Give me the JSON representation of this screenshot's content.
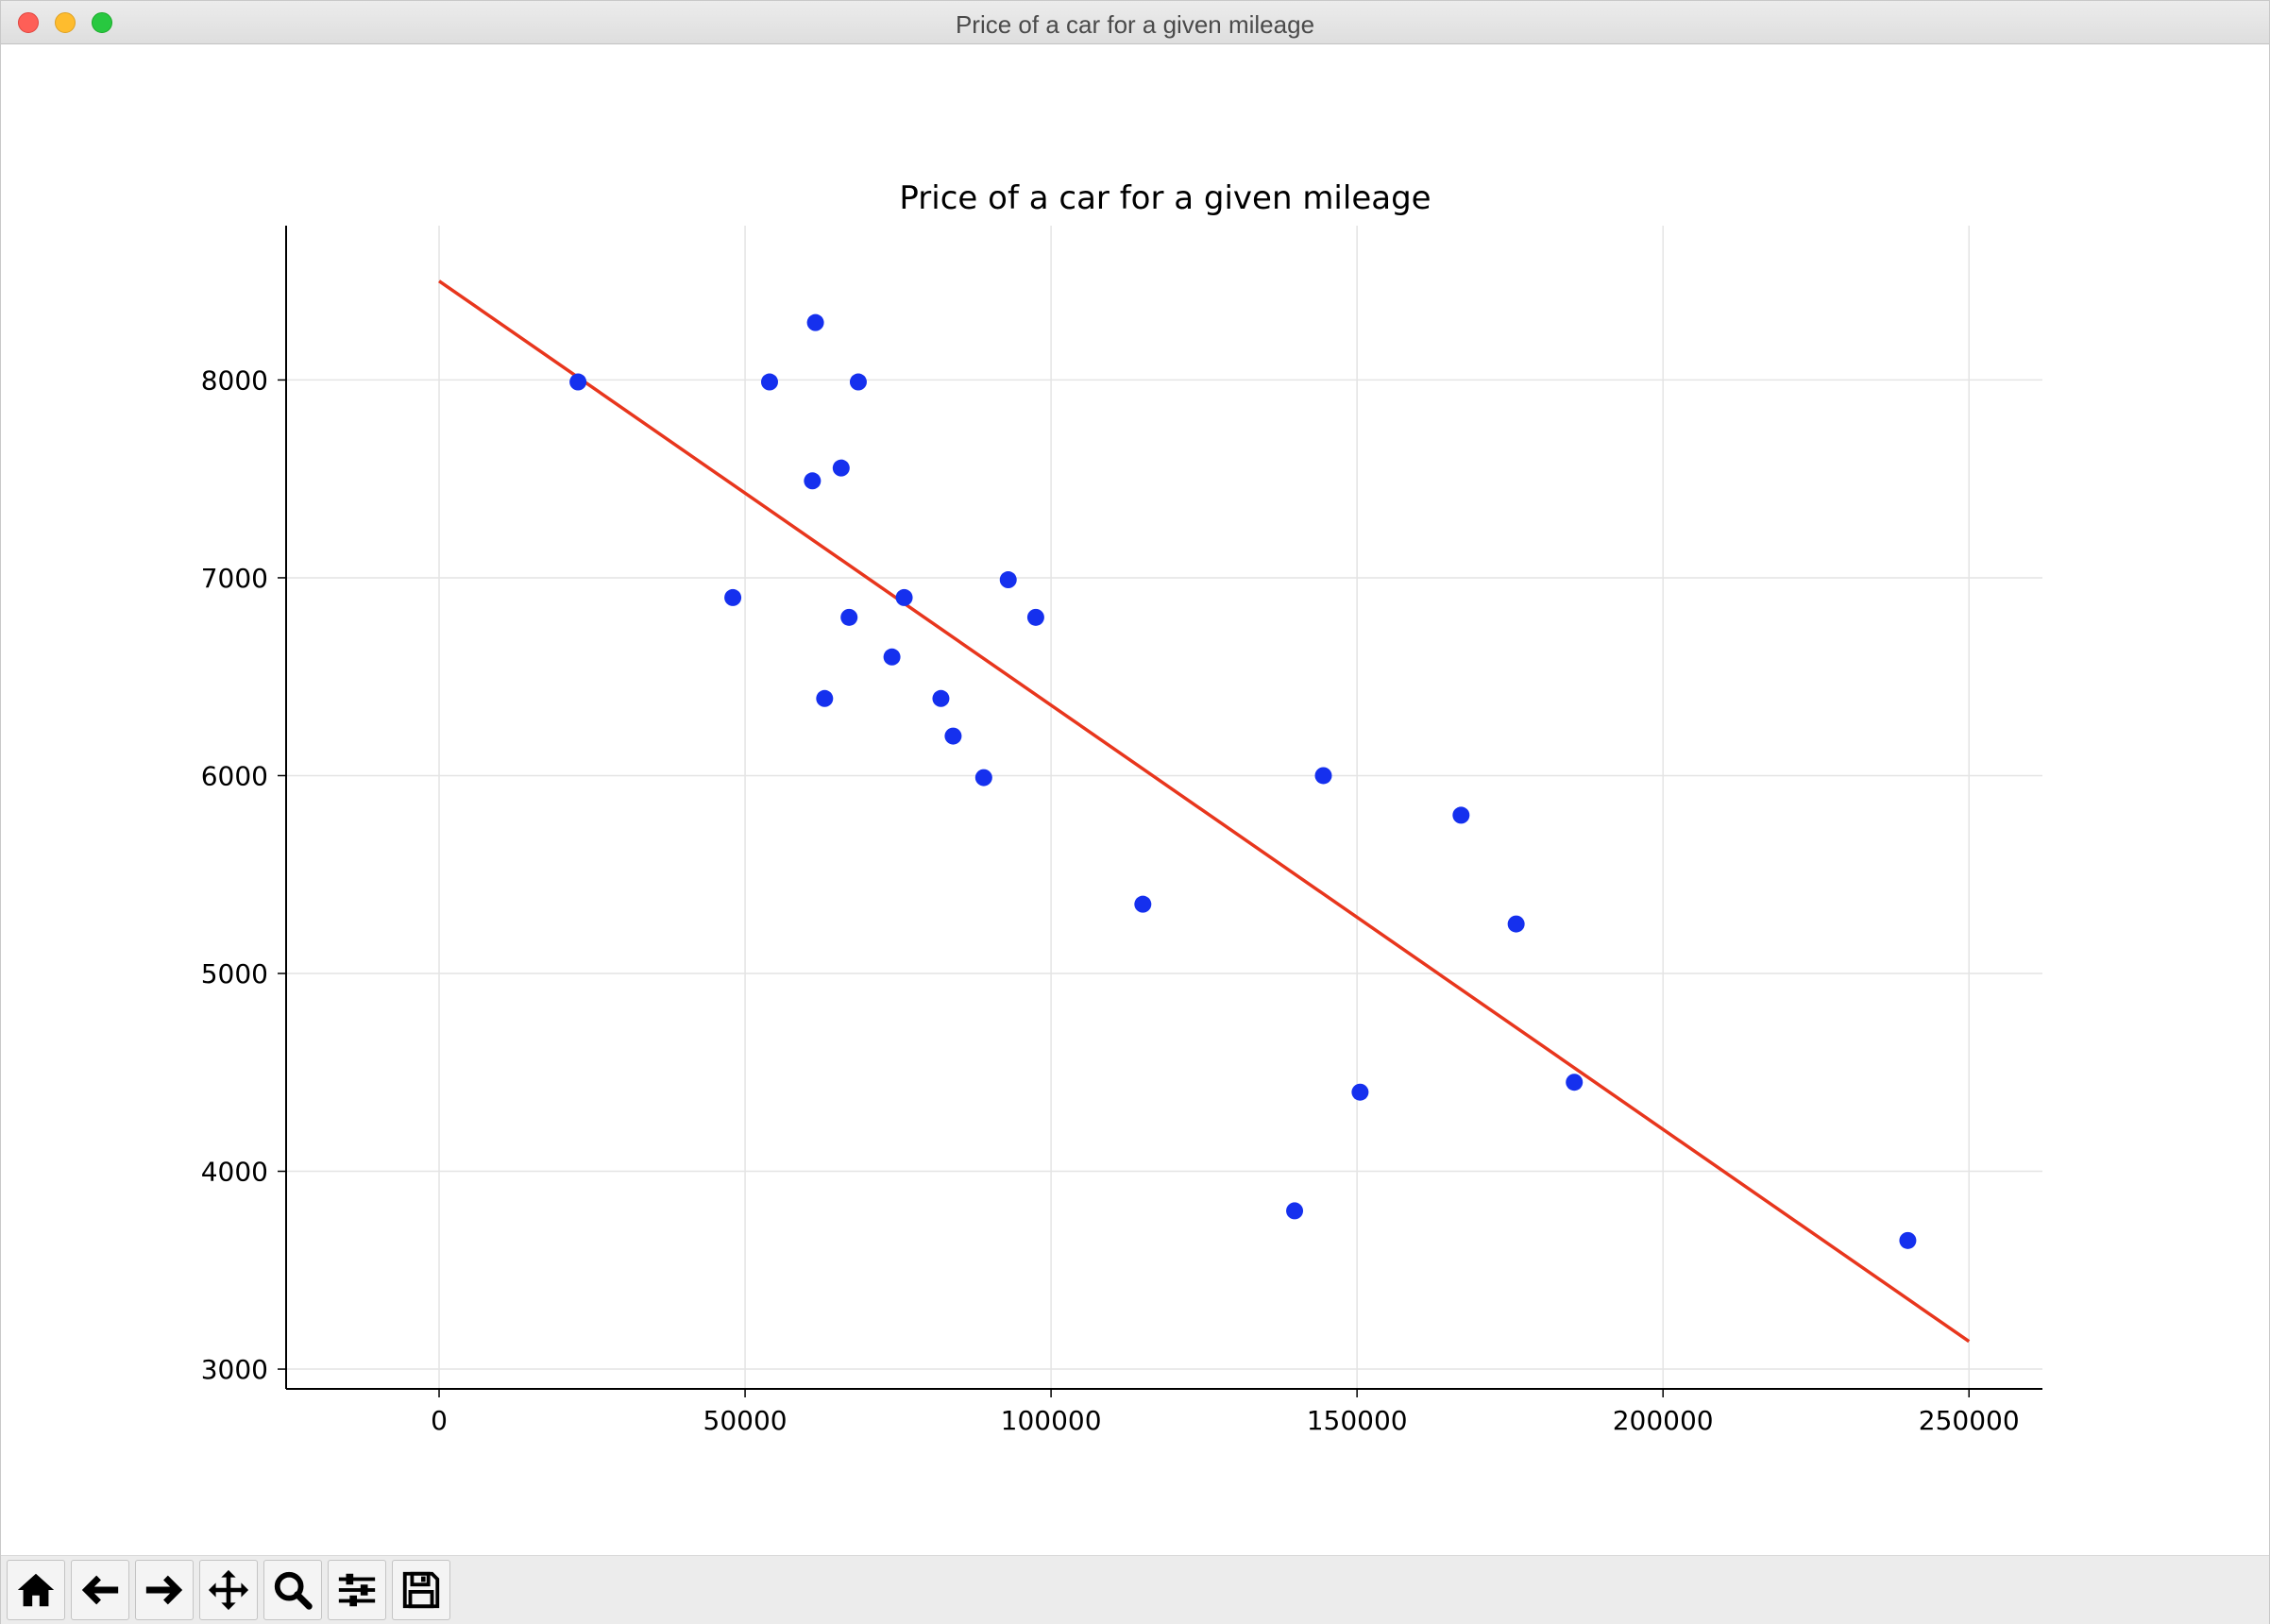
{
  "window": {
    "title": "Price of a car for a given mileage"
  },
  "toolbar": {
    "buttons": [
      {
        "name": "home-button",
        "icon": "home-icon"
      },
      {
        "name": "back-button",
        "icon": "arrow-left-icon"
      },
      {
        "name": "forward-button",
        "icon": "arrow-right-icon"
      },
      {
        "name": "pan-button",
        "icon": "move-icon"
      },
      {
        "name": "zoom-button",
        "icon": "magnifier-icon"
      },
      {
        "name": "configure-subplots-button",
        "icon": "sliders-icon"
      },
      {
        "name": "save-button",
        "icon": "floppy-disk-icon"
      }
    ]
  },
  "chart_data": {
    "type": "scatter",
    "title": "Price of a car for a given mileage",
    "xlabel": "",
    "ylabel": "",
    "xlim": [
      -25000,
      262000
    ],
    "ylim": [
      2900,
      8780
    ],
    "xticks": [
      0,
      50000,
      100000,
      150000,
      200000,
      250000
    ],
    "yticks": [
      3000,
      4000,
      5000,
      6000,
      7000,
      8000
    ],
    "grid": true,
    "points": [
      {
        "x": 22700,
        "y": 7990
      },
      {
        "x": 48000,
        "y": 6900
      },
      {
        "x": 54000,
        "y": 7990
      },
      {
        "x": 61000,
        "y": 7490
      },
      {
        "x": 61500,
        "y": 8290
      },
      {
        "x": 63000,
        "y": 6390
      },
      {
        "x": 65700,
        "y": 7555
      },
      {
        "x": 67000,
        "y": 6800
      },
      {
        "x": 68500,
        "y": 7990
      },
      {
        "x": 74000,
        "y": 6600
      },
      {
        "x": 76000,
        "y": 6900
      },
      {
        "x": 82000,
        "y": 6390
      },
      {
        "x": 84000,
        "y": 6200
      },
      {
        "x": 89000,
        "y": 5990
      },
      {
        "x": 93000,
        "y": 6990
      },
      {
        "x": 97500,
        "y": 6800
      },
      {
        "x": 115000,
        "y": 5350
      },
      {
        "x": 139800,
        "y": 3800
      },
      {
        "x": 144500,
        "y": 6000
      },
      {
        "x": 150500,
        "y": 4400
      },
      {
        "x": 167000,
        "y": 5800
      },
      {
        "x": 176000,
        "y": 5250
      },
      {
        "x": 185500,
        "y": 4450
      },
      {
        "x": 240000,
        "y": 3650
      }
    ],
    "regression_line": {
      "x": [
        0,
        250000
      ],
      "y": [
        8500,
        3140
      ]
    },
    "colors": {
      "points": "#1530ee",
      "line": "#e8361d",
      "grid": "#e4e4e4",
      "axis": "#000000"
    }
  }
}
